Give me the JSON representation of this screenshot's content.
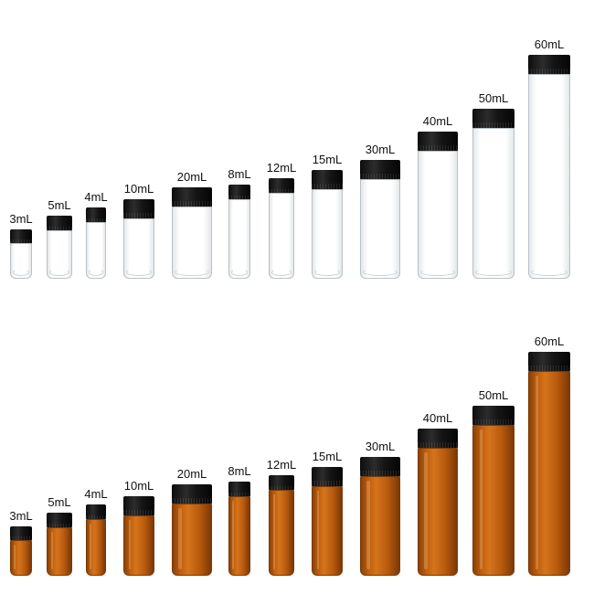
{
  "rows": [
    {
      "style": "clear",
      "color_hex": "#e8ecee",
      "vials": [
        {
          "label": "3mL"
        },
        {
          "label": "5mL"
        },
        {
          "label": "4mL"
        },
        {
          "label": "10mL"
        },
        {
          "label": "20mL"
        },
        {
          "label": "8mL"
        },
        {
          "label": "12mL"
        },
        {
          "label": "15mL"
        },
        {
          "label": "30mL"
        },
        {
          "label": "40mL"
        },
        {
          "label": "50mL"
        },
        {
          "label": "60mL"
        }
      ]
    },
    {
      "style": "amber",
      "color_hex": "#c2610f",
      "vials": [
        {
          "label": "3mL"
        },
        {
          "label": "5mL"
        },
        {
          "label": "4mL"
        },
        {
          "label": "10mL"
        },
        {
          "label": "20mL"
        },
        {
          "label": "8mL"
        },
        {
          "label": "12mL"
        },
        {
          "label": "15mL"
        },
        {
          "label": "30mL"
        },
        {
          "label": "40mL"
        },
        {
          "label": "50mL"
        },
        {
          "label": "60mL"
        }
      ]
    }
  ],
  "cap_color": "#111111"
}
